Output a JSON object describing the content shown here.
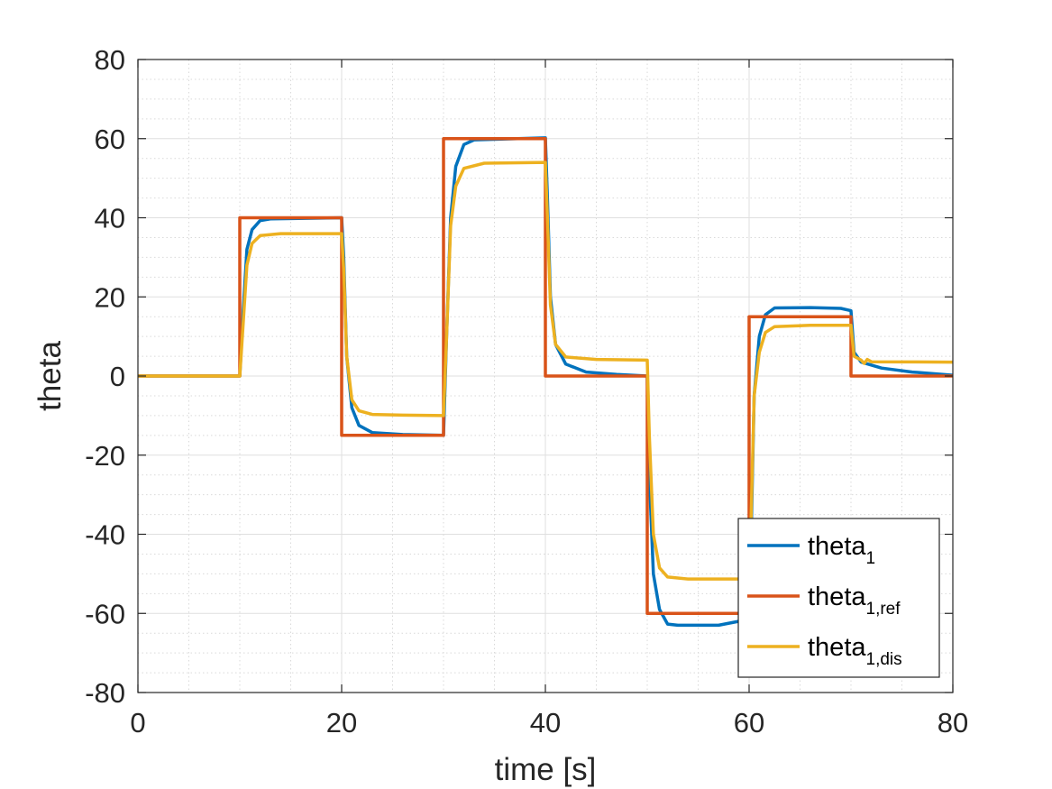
{
  "chart_data": {
    "type": "line",
    "xlabel": "time [s]",
    "ylabel": "theta",
    "xlim": [
      0,
      80
    ],
    "ylim": [
      -80,
      80
    ],
    "x_ticks": [
      0,
      20,
      40,
      60,
      80
    ],
    "y_ticks": [
      -80,
      -60,
      -40,
      -20,
      0,
      20,
      40,
      60,
      80
    ],
    "grid": true,
    "minor_grid": true,
    "legend_position": "bottom-right",
    "series": [
      {
        "name": "theta",
        "subscript": "1",
        "color": "#0072BD",
        "points": [
          [
            0,
            0
          ],
          [
            10,
            0
          ],
          [
            10.3,
            15
          ],
          [
            10.7,
            32
          ],
          [
            11.2,
            37
          ],
          [
            12,
            39.3
          ],
          [
            13,
            39.7
          ],
          [
            20,
            40
          ],
          [
            20.2,
            30
          ],
          [
            20.5,
            5
          ],
          [
            21,
            -8
          ],
          [
            21.7,
            -12.5
          ],
          [
            23,
            -14.3
          ],
          [
            26,
            -14.8
          ],
          [
            30,
            -15
          ],
          [
            30.3,
            10
          ],
          [
            30.7,
            40
          ],
          [
            31.2,
            53
          ],
          [
            32,
            58.5
          ],
          [
            33,
            59.7
          ],
          [
            40,
            60.2
          ],
          [
            40.2,
            45
          ],
          [
            40.5,
            20
          ],
          [
            41,
            8
          ],
          [
            42,
            3
          ],
          [
            44,
            1
          ],
          [
            47,
            0.4
          ],
          [
            50,
            0
          ],
          [
            50.2,
            -25
          ],
          [
            50.6,
            -50
          ],
          [
            51.2,
            -59
          ],
          [
            52,
            -62.7
          ],
          [
            53,
            -63
          ],
          [
            57,
            -63
          ],
          [
            59,
            -62
          ],
          [
            60,
            -62
          ],
          [
            60.2,
            -40
          ],
          [
            60.5,
            -5
          ],
          [
            61,
            10
          ],
          [
            61.6,
            15.5
          ],
          [
            62.5,
            17.2
          ],
          [
            66,
            17.3
          ],
          [
            69,
            17.1
          ],
          [
            70,
            16.5
          ],
          [
            70.3,
            6
          ],
          [
            71,
            3.5
          ],
          [
            73,
            2
          ],
          [
            76,
            1
          ],
          [
            80,
            0.2
          ]
        ]
      },
      {
        "name": "theta",
        "subscript": "1,ref",
        "color": "#D95319",
        "points": [
          [
            0,
            0
          ],
          [
            10,
            0
          ],
          [
            10,
            40
          ],
          [
            20,
            40
          ],
          [
            20,
            -15
          ],
          [
            30,
            -15
          ],
          [
            30,
            60
          ],
          [
            40,
            60
          ],
          [
            40,
            0
          ],
          [
            50,
            0
          ],
          [
            50,
            -60
          ],
          [
            60,
            -60
          ],
          [
            60,
            15
          ],
          [
            70,
            15
          ],
          [
            70,
            0
          ],
          [
            80,
            0
          ]
        ]
      },
      {
        "name": "theta",
        "subscript": "1,dis",
        "color": "#EDB120",
        "points": [
          [
            0,
            0
          ],
          [
            10,
            0
          ],
          [
            10.3,
            12
          ],
          [
            10.7,
            28
          ],
          [
            11.2,
            33.5
          ],
          [
            12,
            35.5
          ],
          [
            14,
            36
          ],
          [
            20,
            36
          ],
          [
            20.2,
            27
          ],
          [
            20.5,
            5
          ],
          [
            21,
            -6
          ],
          [
            21.7,
            -8.8
          ],
          [
            23,
            -9.7
          ],
          [
            26,
            -9.9
          ],
          [
            30,
            -10
          ],
          [
            30.3,
            10
          ],
          [
            30.7,
            38
          ],
          [
            31.2,
            48
          ],
          [
            32,
            52.5
          ],
          [
            34,
            53.8
          ],
          [
            40,
            54
          ],
          [
            40.2,
            40
          ],
          [
            40.5,
            18
          ],
          [
            41,
            8
          ],
          [
            42,
            4.8
          ],
          [
            45,
            4.2
          ],
          [
            50,
            4
          ],
          [
            50.2,
            -15
          ],
          [
            50.6,
            -40
          ],
          [
            51.2,
            -48.5
          ],
          [
            52,
            -50.8
          ],
          [
            54,
            -51.3
          ],
          [
            60,
            -51.3
          ],
          [
            60.2,
            -35
          ],
          [
            60.5,
            -5
          ],
          [
            61,
            6
          ],
          [
            61.6,
            11
          ],
          [
            62.5,
            12.5
          ],
          [
            66,
            12.8
          ],
          [
            70,
            12.8
          ],
          [
            70.3,
            5
          ],
          [
            71,
            4
          ],
          [
            71.3,
            3.2
          ],
          [
            71.6,
            4.2
          ],
          [
            72,
            3.6
          ],
          [
            80,
            3.5
          ]
        ]
      }
    ]
  }
}
